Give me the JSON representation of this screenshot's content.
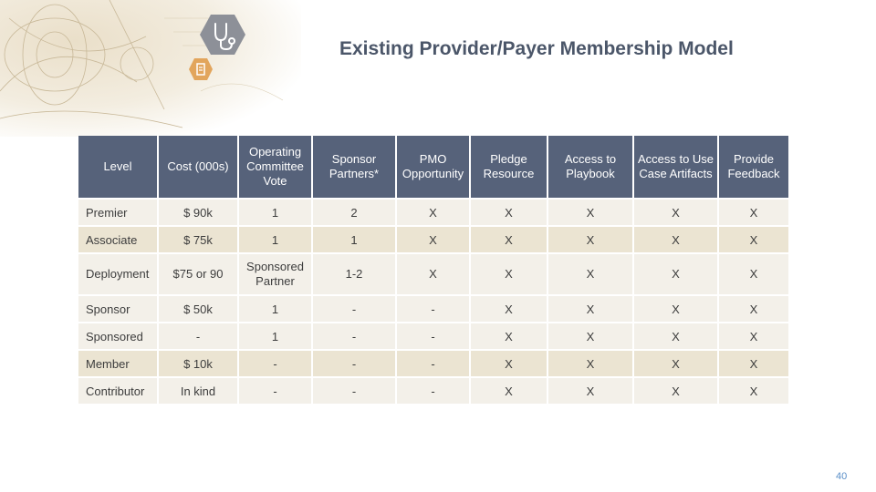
{
  "slide": {
    "title": "Existing Provider/Payer Membership Model",
    "page_number": "40"
  },
  "decor": {
    "stethoscope_icon": "stethoscope-icon",
    "clipboard_icon": "clipboard-icon"
  },
  "table": {
    "headers": [
      "Level",
      "Cost (000s)",
      "Operating Committee Vote",
      "Sponsor Partners*",
      "PMO Opportunity",
      "Pledge Resource",
      "Access to Playbook",
      "Access to Use Case Artifacts",
      "Provide Feedback"
    ],
    "rows": [
      [
        "Premier",
        "$ 90k",
        "1",
        "2",
        "X",
        "X",
        "X",
        "X",
        "X"
      ],
      [
        "Associate",
        "$ 75k",
        "1",
        "1",
        "X",
        "X",
        "X",
        "X",
        "X"
      ],
      [
        "Deployment",
        "$75 or 90",
        "Sponsored Partner",
        "1-2",
        "X",
        "X",
        "X",
        "X",
        "X"
      ],
      [
        "Sponsor",
        "$ 50k",
        "1",
        "-",
        "-",
        "X",
        "X",
        "X",
        "X"
      ],
      [
        "Sponsored",
        "-",
        "1",
        "-",
        "-",
        "X",
        "X",
        "X",
        "X"
      ],
      [
        "Member",
        "$ 10k",
        "-",
        "-",
        "-",
        "X",
        "X",
        "X",
        "X"
      ],
      [
        "Contributor",
        "In kind",
        "-",
        "-",
        "-",
        "X",
        "X",
        "X",
        "X"
      ]
    ]
  }
}
